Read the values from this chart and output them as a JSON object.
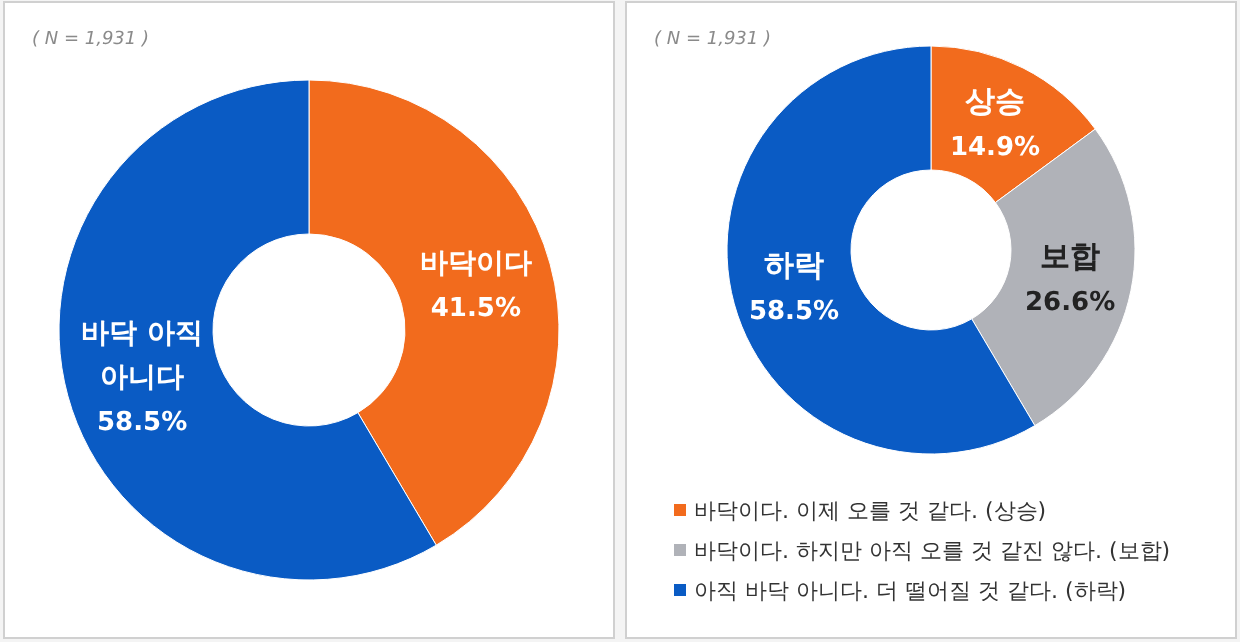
{
  "chart_data": [
    {
      "type": "donut",
      "subtitle": "( N = 1,931 )",
      "categories": [
        "바닥이다",
        "바닥 아직\n아니다"
      ],
      "values": [
        41.5,
        58.5
      ],
      "value_labels": [
        "41.5%",
        "58.5%"
      ],
      "colors": [
        "#f26b1d",
        "#0a5bc4"
      ]
    },
    {
      "type": "donut",
      "subtitle": "( N = 1,931 )",
      "categories": [
        "상승",
        "보합",
        "하락"
      ],
      "values": [
        14.9,
        26.6,
        58.5
      ],
      "value_labels": [
        "14.9%",
        "26.6%",
        "58.5%"
      ],
      "colors": [
        "#f26b1d",
        "#b0b2b8",
        "#0a5bc4"
      ],
      "annotations": [
        "바닥이다. 이제 오를 것 같다. (상승)",
        "바닥이다. 하지만 아직 오를 것 같진 않다. (보합)",
        "아직 바닥 아니다. 더 떨어질 것 같다. (하락)"
      ]
    }
  ]
}
